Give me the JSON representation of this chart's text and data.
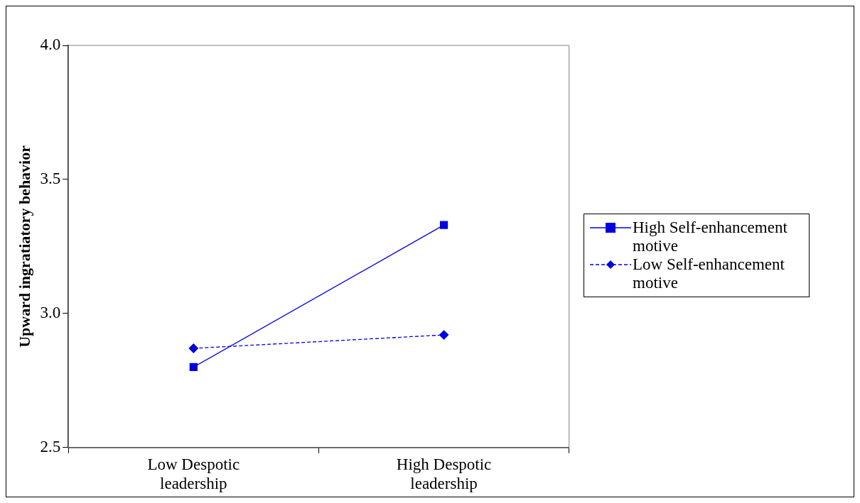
{
  "chart_data": {
    "type": "line",
    "ylabel": "Upward ingratiatory behavior",
    "categories": [
      "Low Despotic leadership",
      "High Despotic leadership"
    ],
    "series": [
      {
        "name": "High Self-enhancement motive",
        "color": "#0000e0",
        "values": [
          2.8,
          3.33
        ],
        "marker": "square",
        "line_style": "solid"
      },
      {
        "name": "Low Self-enhancement motive",
        "color": "#0000e0",
        "values": [
          2.87,
          2.92
        ],
        "marker": "diamond",
        "line_style": "dashed"
      }
    ],
    "ylim": [
      2.5,
      4.0
    ],
    "yticks": [
      2.5,
      {
        "value": 3,
        "label": "3.0"
      },
      3.5,
      {
        "value": 4,
        "label": "4.0"
      }
    ],
    "grid": false,
    "legend": "right"
  }
}
